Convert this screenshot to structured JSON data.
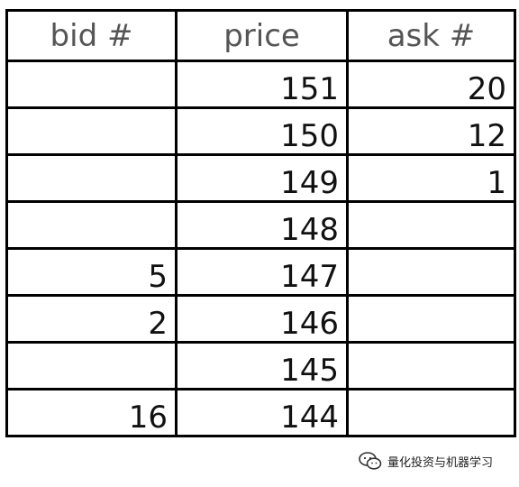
{
  "headers": [
    "bid #",
    "price",
    "ask #"
  ],
  "rows": [
    {
      "bid": "",
      "price": "151",
      "ask": "20"
    },
    {
      "bid": "",
      "price": "150",
      "ask": "12"
    },
    {
      "bid": "",
      "price": "149",
      "ask": "1"
    },
    {
      "bid": "",
      "price": "148",
      "ask": ""
    },
    {
      "bid": "5",
      "price": "147",
      "ask": ""
    },
    {
      "bid": "2",
      "price": "146",
      "ask": ""
    },
    {
      "bid": "",
      "price": "145",
      "ask": ""
    },
    {
      "bid": "16",
      "price": "144",
      "ask": ""
    }
  ],
  "watermark": {
    "icon": "wechat-icon",
    "text": "量化投资与机器学习"
  }
}
